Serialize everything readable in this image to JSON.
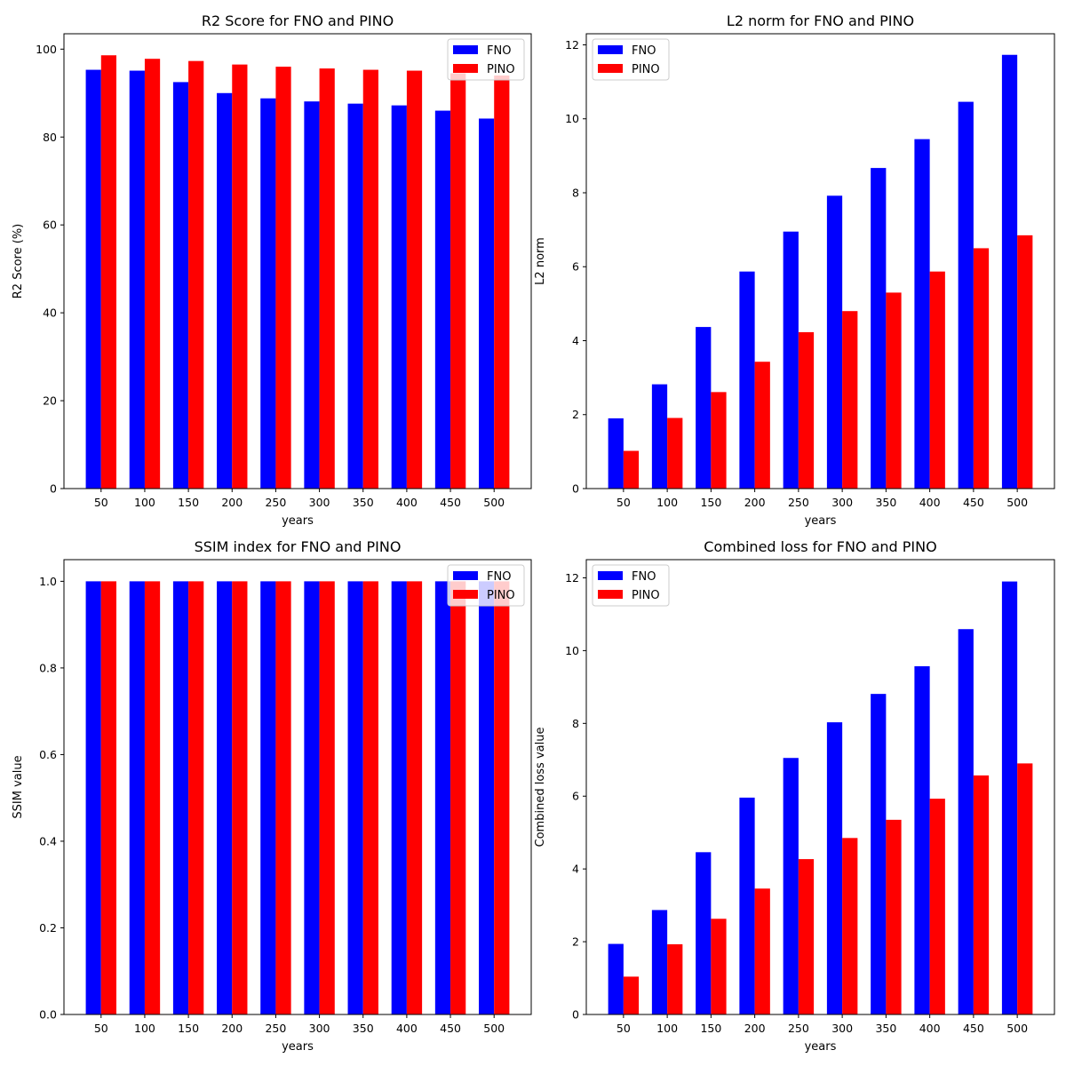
{
  "chart_data": [
    {
      "type": "bar",
      "title": "R2 Score for FNO and PINO",
      "xlabel": "years",
      "ylabel": "R2 Score (%)",
      "categories": [
        "50",
        "100",
        "150",
        "200",
        "250",
        "300",
        "350",
        "400",
        "450",
        "500"
      ],
      "series": [
        {
          "name": "FNO",
          "color": "#0000ff",
          "values": [
            95.3,
            95.1,
            92.5,
            90.0,
            88.8,
            88.1,
            87.6,
            87.2,
            86.0,
            84.2
          ]
        },
        {
          "name": "PINO",
          "color": "#ff0000",
          "values": [
            98.6,
            97.8,
            97.3,
            96.5,
            96.0,
            95.6,
            95.3,
            95.1,
            94.5,
            94.0
          ]
        }
      ],
      "ylim": [
        0,
        103.5
      ],
      "yticks": [
        0,
        20,
        40,
        60,
        80,
        100
      ],
      "legend": "top-right",
      "grid": false
    },
    {
      "type": "bar",
      "title": "L2 norm for FNO and PINO",
      "xlabel": "years",
      "ylabel": "L2 norm",
      "categories": [
        "50",
        "100",
        "150",
        "200",
        "250",
        "300",
        "350",
        "400",
        "450",
        "500"
      ],
      "series": [
        {
          "name": "FNO",
          "color": "#0000ff",
          "values": [
            1.9,
            2.82,
            4.37,
            5.87,
            6.95,
            7.92,
            8.67,
            9.45,
            10.46,
            11.73
          ]
        },
        {
          "name": "PINO",
          "color": "#ff0000",
          "values": [
            1.02,
            1.91,
            2.61,
            3.43,
            4.23,
            4.8,
            5.3,
            5.87,
            6.5,
            6.85
          ]
        }
      ],
      "ylim": [
        0,
        12.3
      ],
      "yticks": [
        0,
        2,
        4,
        6,
        8,
        10,
        12
      ],
      "legend": "top-left",
      "grid": false
    },
    {
      "type": "bar",
      "title": "SSIM index for FNO and PINO",
      "xlabel": "years",
      "ylabel": "SSIM value",
      "categories": [
        "50",
        "100",
        "150",
        "200",
        "250",
        "300",
        "350",
        "400",
        "450",
        "500"
      ],
      "series": [
        {
          "name": "FNO",
          "color": "#0000ff",
          "values": [
            1.0,
            1.0,
            1.0,
            1.0,
            1.0,
            1.0,
            1.0,
            1.0,
            1.0,
            1.0
          ]
        },
        {
          "name": "PINO",
          "color": "#ff0000",
          "values": [
            1.0,
            1.0,
            1.0,
            1.0,
            1.0,
            1.0,
            1.0,
            1.0,
            1.0,
            1.0
          ]
        }
      ],
      "ylim": [
        0,
        1.05
      ],
      "yticks": [
        0.0,
        0.2,
        0.4,
        0.6,
        0.8,
        1.0
      ],
      "ytick_labels": [
        "0.0",
        "0.2",
        "0.4",
        "0.6",
        "0.8",
        "1.0"
      ],
      "legend": "top-right",
      "grid": false
    },
    {
      "type": "bar",
      "title": "Combined loss for FNO and PINO",
      "xlabel": "years",
      "ylabel": "Combined loss value",
      "categories": [
        "50",
        "100",
        "150",
        "200",
        "250",
        "300",
        "350",
        "400",
        "450",
        "500"
      ],
      "series": [
        {
          "name": "FNO",
          "color": "#0000ff",
          "values": [
            1.94,
            2.87,
            4.46,
            5.96,
            7.05,
            8.03,
            8.81,
            9.57,
            10.59,
            11.9
          ]
        },
        {
          "name": "PINO",
          "color": "#ff0000",
          "values": [
            1.04,
            1.93,
            2.63,
            3.46,
            4.27,
            4.85,
            5.35,
            5.93,
            6.57,
            6.9
          ]
        }
      ],
      "ylim": [
        0,
        12.5
      ],
      "yticks": [
        0,
        2,
        4,
        6,
        8,
        10,
        12
      ],
      "legend": "top-left",
      "grid": false
    }
  ]
}
